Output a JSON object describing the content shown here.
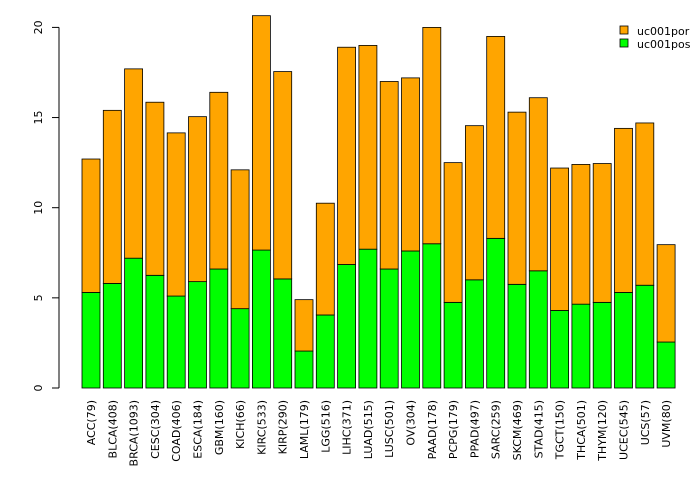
{
  "chart_data": {
    "type": "bar",
    "stacked": true,
    "title": "",
    "xlabel": "",
    "ylabel": "",
    "ylim": [
      0,
      21
    ],
    "yticks": [
      0,
      5,
      10,
      15,
      20
    ],
    "grid": false,
    "legend_position": "top-right",
    "categories": [
      "ACC(79)",
      "BLCA(408)",
      "BRCA(1093)",
      "CESC(304)",
      "COAD(406)",
      "ESCA(184)",
      "GBM(160)",
      "KICH(66)",
      "KIRC(533)",
      "KIRP(290)",
      "LAML(179)",
      "LGG(516)",
      "LIHC(371)",
      "LUAD(515)",
      "LUSC(501)",
      "OV(304)",
      "PAAD(178)",
      "PCPG(179)",
      "PPAD(497)",
      "SARC(259)",
      "SKCM(469)",
      "STAD(415)",
      "TGCT(150)",
      "THCA(501)",
      "THYM(120)",
      "UCEC(545)",
      "UCS(57)",
      "UVM(80)"
    ],
    "series": [
      {
        "name": "uc001pos",
        "color": "#00ff00",
        "values": [
          5.3,
          5.8,
          7.2,
          6.25,
          5.1,
          5.9,
          6.6,
          4.4,
          7.65,
          6.05,
          2.05,
          4.05,
          6.85,
          7.7,
          6.6,
          7.6,
          8.0,
          4.75,
          6.0,
          8.3,
          5.75,
          6.5,
          4.3,
          4.65,
          4.75,
          5.3,
          5.7,
          2.55
        ]
      },
      {
        "name": "uc001por",
        "color": "#ffa500",
        "values": [
          7.4,
          9.6,
          10.5,
          9.6,
          9.05,
          9.15,
          9.8,
          7.7,
          13.0,
          11.5,
          2.85,
          6.2,
          12.05,
          11.3,
          10.4,
          9.6,
          12.0,
          7.75,
          8.55,
          11.2,
          9.55,
          9.6,
          7.9,
          7.75,
          7.7,
          9.1,
          9.0,
          5.4
        ]
      }
    ]
  }
}
